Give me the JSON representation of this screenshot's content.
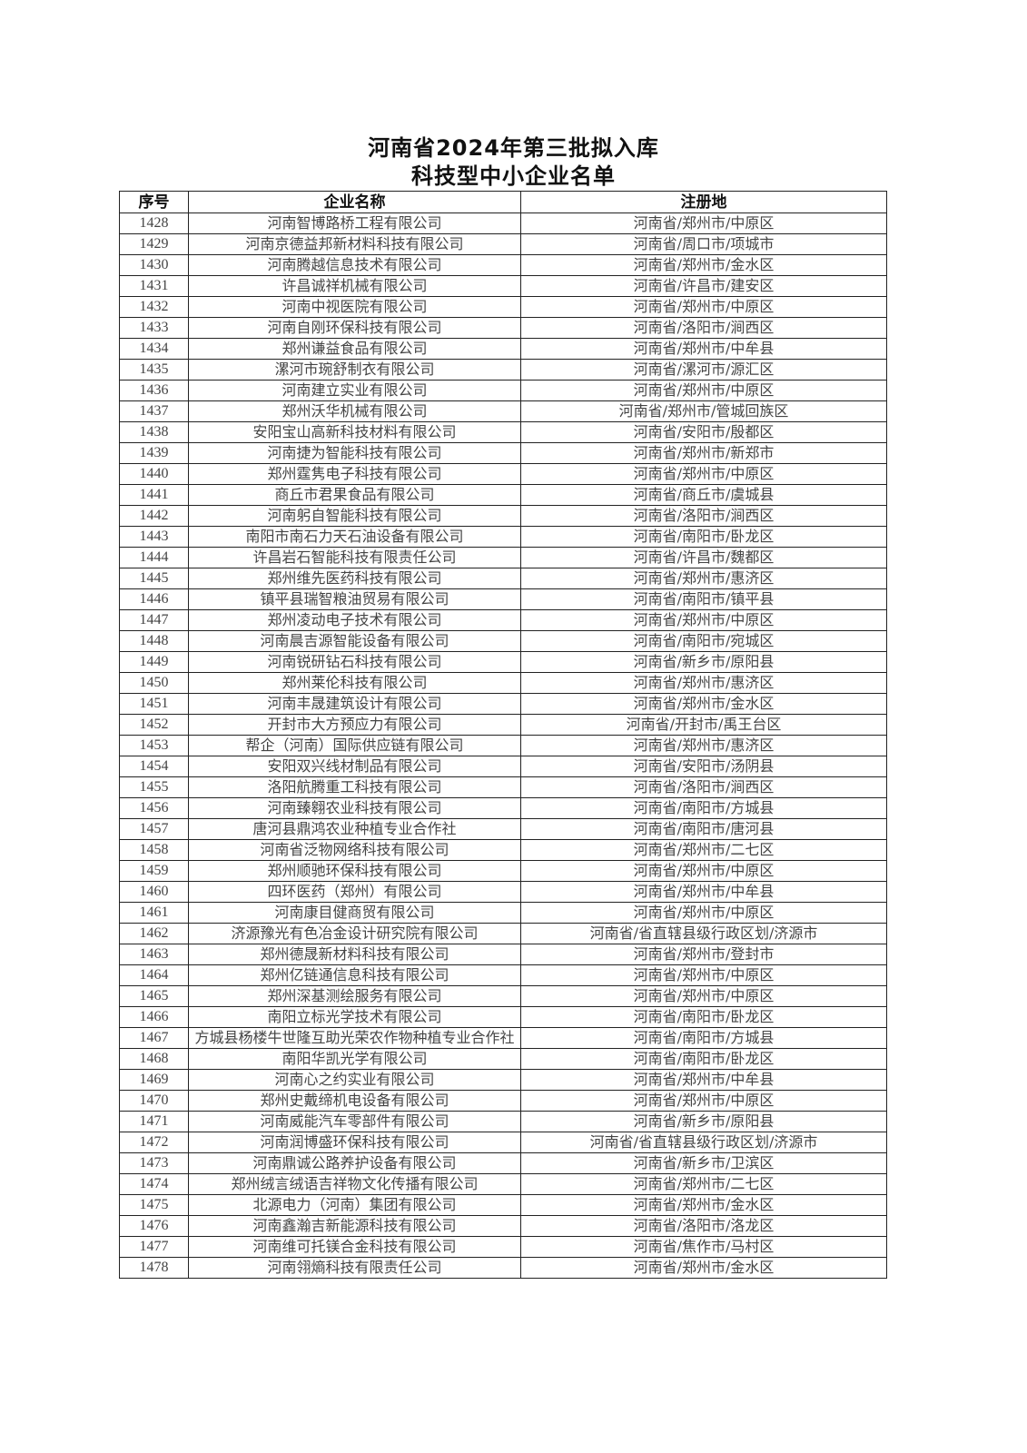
{
  "title_line1": "河南省2024年第三批拟入库",
  "title_line2": "科技型中小企业名单",
  "columns": [
    "序号",
    "企业名称",
    "注册地"
  ],
  "rows": [
    [
      "1428",
      "河南智博路桥工程有限公司",
      "河南省/郑州市/中原区"
    ],
    [
      "1429",
      "河南京德益邦新材料科技有限公司",
      "河南省/周口市/项城市"
    ],
    [
      "1430",
      "河南腾越信息技术有限公司",
      "河南省/郑州市/金水区"
    ],
    [
      "1431",
      "许昌诚祥机械有限公司",
      "河南省/许昌市/建安区"
    ],
    [
      "1432",
      "河南中视医院有限公司",
      "河南省/郑州市/中原区"
    ],
    [
      "1433",
      "河南自刚环保科技有限公司",
      "河南省/洛阳市/涧西区"
    ],
    [
      "1434",
      "郑州谦益食品有限公司",
      "河南省/郑州市/中牟县"
    ],
    [
      "1435",
      "漯河市琬舒制衣有限公司",
      "河南省/漯河市/源汇区"
    ],
    [
      "1436",
      "河南建立实业有限公司",
      "河南省/郑州市/中原区"
    ],
    [
      "1437",
      "郑州沃华机械有限公司",
      "河南省/郑州市/管城回族区"
    ],
    [
      "1438",
      "安阳宝山高新科技材料有限公司",
      "河南省/安阳市/殷都区"
    ],
    [
      "1439",
      "河南捷为智能科技有限公司",
      "河南省/郑州市/新郑市"
    ],
    [
      "1440",
      "郑州霆隽电子科技有限公司",
      "河南省/郑州市/中原区"
    ],
    [
      "1441",
      "商丘市君果食品有限公司",
      "河南省/商丘市/虞城县"
    ],
    [
      "1442",
      "河南躬自智能科技有限公司",
      "河南省/洛阳市/涧西区"
    ],
    [
      "1443",
      "南阳市南石力天石油设备有限公司",
      "河南省/南阳市/卧龙区"
    ],
    [
      "1444",
      "许昌岩石智能科技有限责任公司",
      "河南省/许昌市/魏都区"
    ],
    [
      "1445",
      "郑州维先医药科技有限公司",
      "河南省/郑州市/惠济区"
    ],
    [
      "1446",
      "镇平县瑞智粮油贸易有限公司",
      "河南省/南阳市/镇平县"
    ],
    [
      "1447",
      "郑州凌动电子技术有限公司",
      "河南省/郑州市/中原区"
    ],
    [
      "1448",
      "河南晨吉源智能设备有限公司",
      "河南省/南阳市/宛城区"
    ],
    [
      "1449",
      "河南锐研钻石科技有限公司",
      "河南省/新乡市/原阳县"
    ],
    [
      "1450",
      "郑州莱伦科技有限公司",
      "河南省/郑州市/惠济区"
    ],
    [
      "1451",
      "河南丰晟建筑设计有限公司",
      "河南省/郑州市/金水区"
    ],
    [
      "1452",
      "开封市大方预应力有限公司",
      "河南省/开封市/禹王台区"
    ],
    [
      "1453",
      "帮企（河南）国际供应链有限公司",
      "河南省/郑州市/惠济区"
    ],
    [
      "1454",
      "安阳双兴线材制品有限公司",
      "河南省/安阳市/汤阴县"
    ],
    [
      "1455",
      "洛阳航腾重工科技有限公司",
      "河南省/洛阳市/涧西区"
    ],
    [
      "1456",
      "河南臻翱农业科技有限公司",
      "河南省/南阳市/方城县"
    ],
    [
      "1457",
      "唐河县鼎鸿农业种植专业合作社",
      "河南省/南阳市/唐河县"
    ],
    [
      "1458",
      "河南省泛物网络科技有限公司",
      "河南省/郑州市/二七区"
    ],
    [
      "1459",
      "郑州顺驰环保科技有限公司",
      "河南省/郑州市/中原区"
    ],
    [
      "1460",
      "四环医药（郑州）有限公司",
      "河南省/郑州市/中牟县"
    ],
    [
      "1461",
      "河南康目健商贸有限公司",
      "河南省/郑州市/中原区"
    ],
    [
      "1462",
      "济源豫光有色冶金设计研究院有限公司",
      "河南省/省直辖县级行政区划/济源市"
    ],
    [
      "1463",
      "郑州德晟新材料科技有限公司",
      "河南省/郑州市/登封市"
    ],
    [
      "1464",
      "郑州亿链通信息科技有限公司",
      "河南省/郑州市/中原区"
    ],
    [
      "1465",
      "郑州深基测绘服务有限公司",
      "河南省/郑州市/中原区"
    ],
    [
      "1466",
      "南阳立标光学技术有限公司",
      "河南省/南阳市/卧龙区"
    ],
    [
      "1467",
      "方城县杨楼牛世隆互助光荣农作物种植专业合作社",
      "河南省/南阳市/方城县"
    ],
    [
      "1468",
      "南阳华凯光学有限公司",
      "河南省/南阳市/卧龙区"
    ],
    [
      "1469",
      "河南心之约实业有限公司",
      "河南省/郑州市/中牟县"
    ],
    [
      "1470",
      "郑州史戴缔机电设备有限公司",
      "河南省/郑州市/中原区"
    ],
    [
      "1471",
      "河南威能汽车零部件有限公司",
      "河南省/新乡市/原阳县"
    ],
    [
      "1472",
      "河南润博盛环保科技有限公司",
      "河南省/省直辖县级行政区划/济源市"
    ],
    [
      "1473",
      "河南鼎诚公路养护设备有限公司",
      "河南省/新乡市/卫滨区"
    ],
    [
      "1474",
      "郑州绒言绒语吉祥物文化传播有限公司",
      "河南省/郑州市/二七区"
    ],
    [
      "1475",
      "北源电力（河南）集团有限公司",
      "河南省/郑州市/金水区"
    ],
    [
      "1476",
      "河南鑫瀚吉新能源科技有限公司",
      "河南省/洛阳市/洛龙区"
    ],
    [
      "1477",
      "河南维可托镁合金科技有限公司",
      "河南省/焦作市/马村区"
    ],
    [
      "1478",
      "河南翎熵科技有限责任公司",
      "河南省/郑州市/金水区"
    ]
  ]
}
